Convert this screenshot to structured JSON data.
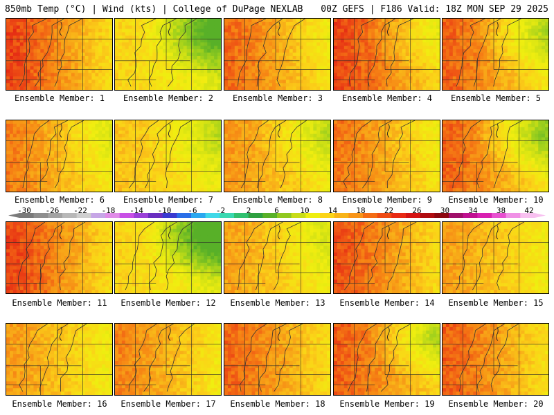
{
  "header": {
    "left": "850mb Temp (°C) | Wind (kts) | College of DuPage NEXLAB",
    "right": "00Z GEFS | F186 Valid: 18Z MON SEP 29 2025"
  },
  "colorbar": {
    "labels": [
      "-30",
      "-26",
      "-22",
      "-18",
      "-14",
      "-10",
      "-6",
      "-2",
      "2",
      "6",
      "10",
      "14",
      "18",
      "22",
      "26",
      "30",
      "34",
      "38",
      "42"
    ],
    "colors": [
      "#7a7a7a",
      "#8e8e8e",
      "#a3a3a3",
      "#b8b8b8",
      "#cfcfcf",
      "#c6a6e6",
      "#e08ce8",
      "#c850e6",
      "#9b40d8",
      "#6a2ec0",
      "#3a3ad0",
      "#2a6ee8",
      "#2aa8f0",
      "#40d8e8",
      "#3ad8b0",
      "#30c070",
      "#2ea040",
      "#58b028",
      "#90c820",
      "#c8dc18",
      "#eeee10",
      "#fbd418",
      "#f8b418",
      "#f89418",
      "#f46c14",
      "#ee4a14",
      "#e82a14",
      "#d41414",
      "#b00c10",
      "#8c0810",
      "#a0106a",
      "#c01090",
      "#d820b0",
      "#e850d0",
      "#f090e6",
      "#f8c0f0"
    ]
  },
  "panels": [
    {
      "label": "Ensemble Member: 1",
      "warm": 0.86,
      "west": 0.95,
      "green": 0.0
    },
    {
      "label": "Ensemble Member: 2",
      "warm": 0.55,
      "west": 0.8,
      "green": 0.45
    },
    {
      "label": "Ensemble Member: 3",
      "warm": 0.8,
      "west": 0.9,
      "green": 0.05
    },
    {
      "label": "Ensemble Member: 4",
      "warm": 0.88,
      "west": 0.85,
      "green": 0.15
    },
    {
      "label": "Ensemble Member: 5",
      "warm": 0.8,
      "west": 0.95,
      "green": 0.25
    },
    {
      "label": "Ensemble Member: 6",
      "warm": 0.75,
      "west": 0.92,
      "green": 0.1
    },
    {
      "label": "Ensemble Member: 7",
      "warm": 0.62,
      "west": 0.75,
      "green": 0.15
    },
    {
      "label": "Ensemble Member: 8",
      "warm": 0.72,
      "west": 0.8,
      "green": 0.2
    },
    {
      "label": "Ensemble Member: 9",
      "warm": 0.78,
      "west": 0.88,
      "green": 0.05
    },
    {
      "label": "Ensemble Member: 10",
      "warm": 0.8,
      "west": 0.95,
      "green": 0.35
    },
    {
      "label": "Ensemble Member: 11",
      "warm": 0.86,
      "west": 0.95,
      "green": 0.0
    },
    {
      "label": "Ensemble Member: 12",
      "warm": 0.55,
      "west": 0.8,
      "green": 0.55
    },
    {
      "label": "Ensemble Member: 13",
      "warm": 0.68,
      "west": 0.85,
      "green": 0.1
    },
    {
      "label": "Ensemble Member: 14",
      "warm": 0.85,
      "west": 0.9,
      "green": 0.0
    },
    {
      "label": "Ensemble Member: 15",
      "warm": 0.7,
      "west": 0.8,
      "green": 0.0
    },
    {
      "label": "Ensemble Member: 16",
      "warm": 0.7,
      "west": 0.85,
      "green": 0.0
    },
    {
      "label": "Ensemble Member: 17",
      "warm": 0.75,
      "west": 0.88,
      "green": 0.0
    },
    {
      "label": "Ensemble Member: 18",
      "warm": 0.82,
      "west": 0.85,
      "green": 0.0
    },
    {
      "label": "Ensemble Member: 19",
      "warm": 0.85,
      "west": 0.8,
      "green": 0.3
    },
    {
      "label": "Ensemble Member: 20",
      "warm": 0.82,
      "west": 0.9,
      "green": 0.0
    }
  ]
}
